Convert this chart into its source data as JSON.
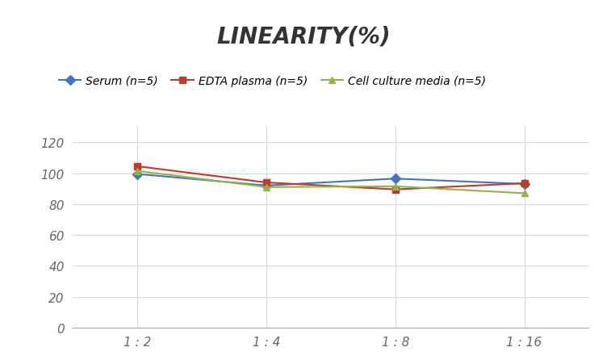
{
  "title": "LINEARITY(%)",
  "x_labels": [
    "1 : 2",
    "1 : 4",
    "1 : 8",
    "1 : 16"
  ],
  "x_positions": [
    0,
    1,
    2,
    3
  ],
  "series": [
    {
      "label": "Serum (n=5)",
      "color": "#4472C4",
      "marker": "D",
      "values": [
        99.5,
        92.0,
        96.5,
        93.0
      ]
    },
    {
      "label": "EDTA plasma (n=5)",
      "color": "#C0392B",
      "marker": "s",
      "values": [
        104.5,
        94.0,
        89.5,
        93.5
      ]
    },
    {
      "label": "Cell culture media (n=5)",
      "color": "#92B442",
      "marker": "^",
      "values": [
        101.5,
        91.0,
        91.5,
        87.0
      ]
    }
  ],
  "ylim": [
    0,
    130
  ],
  "yticks": [
    0,
    20,
    40,
    60,
    80,
    100,
    120
  ],
  "background_color": "#ffffff",
  "grid_color": "#d8d8d8",
  "title_fontsize": 20,
  "legend_fontsize": 10,
  "tick_fontsize": 11
}
